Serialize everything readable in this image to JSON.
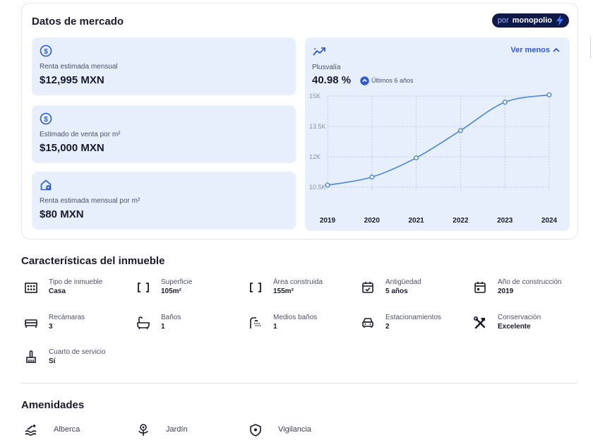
{
  "market": {
    "title": "Datos de mercado",
    "brand_prefix": "por",
    "brand_name": "monopolio",
    "stats": [
      {
        "icon": "dollar-circle-icon",
        "label": "Renta estimada mensual",
        "value": "$12,995 MXN"
      },
      {
        "icon": "dollar-circle-icon",
        "label": "Estimado de venta por m²",
        "value": "$15,000 MXN"
      },
      {
        "icon": "house-dollar-icon",
        "label": "Renta estimada mensual por m²",
        "value": "$80 MXN"
      }
    ],
    "plusvalia": {
      "icon": "trend-up-icon",
      "toggle_label": "Ver menos",
      "label": "Plusvalía",
      "value": "40.98 %",
      "period": "Últimos 6 años"
    }
  },
  "chart_data": {
    "type": "line",
    "x": [
      2019,
      2020,
      2021,
      2022,
      2023,
      2024
    ],
    "series": [
      {
        "values": [
          10600,
          11000,
          11950,
          13300,
          14700,
          15060
        ]
      }
    ],
    "y_ticks": [
      "15K",
      "13.5K",
      "12K",
      "10.5K"
    ],
    "x_ticks": [
      "2019",
      "2020",
      "2021",
      "2022",
      "2023",
      "2024"
    ],
    "ylim": [
      10500,
      15000
    ],
    "grid": true,
    "color": "#4a86d4"
  },
  "characteristics": {
    "title": "Características del inmueble",
    "items": [
      {
        "icon": "building-icon",
        "label": "Tipo de inmueble",
        "value": "Casa"
      },
      {
        "icon": "area-brackets-icon",
        "label": "Superficie",
        "value": "105m²"
      },
      {
        "icon": "area-brackets-icon",
        "label": "Área construida",
        "value": "155m²"
      },
      {
        "icon": "calendar-check-icon",
        "label": "Antigüedad",
        "value": "5 años"
      },
      {
        "icon": "calendar-icon",
        "label": "Año de construcción",
        "value": "2019"
      },
      {
        "icon": "bed-icon",
        "label": "Recámaras",
        "value": "3"
      },
      {
        "icon": "bathtub-icon",
        "label": "Baños",
        "value": "1"
      },
      {
        "icon": "shower-icon",
        "label": "Medios baños",
        "value": "1"
      },
      {
        "icon": "car-icon",
        "label": "Estacionamientos",
        "value": "2"
      },
      {
        "icon": "tools-icon",
        "label": "Conservación",
        "value": "Excelente"
      },
      {
        "icon": "broom-icon",
        "label": "Cuarto de servicio",
        "value": "Sí"
      }
    ]
  },
  "amenities": {
    "title": "Amenidades",
    "items": [
      {
        "icon": "pool-icon",
        "label": "Alberca"
      },
      {
        "icon": "garden-icon",
        "label": "Jardín"
      },
      {
        "icon": "shield-icon",
        "label": "Vigilancia"
      }
    ]
  },
  "colors": {
    "accent": "#2b59d8",
    "card_bg": "#e8effc",
    "line": "#4a86d4",
    "brand_bg": "#0f1a4a"
  }
}
